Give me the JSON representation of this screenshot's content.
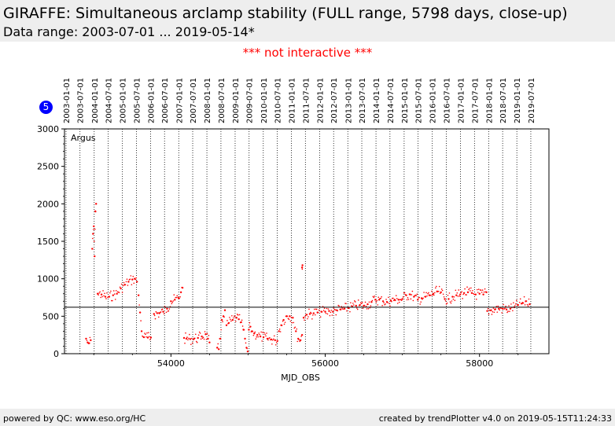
{
  "header": {
    "title": "GIRAFFE: Simultaneous arclamp stability (FULL range, 5798 days, close-up)",
    "subtitle": "Data range: 2003-07-01 ... 2019-05-14*"
  },
  "notice": "*** not interactive ***",
  "badge": "5",
  "footer": {
    "left": "powered by QC: www.eso.org/HC",
    "right": "created by trendPlotter v4.0 on 2019-05-15T11:24:33"
  },
  "chart_data": {
    "type": "scatter",
    "xlabel": "MJD_OBS",
    "ylabel": "",
    "xlim": [
      52620,
      58900
    ],
    "ylim": [
      0,
      3000
    ],
    "x_ticks": [
      54000,
      56000,
      58000
    ],
    "y_ticks": [
      0,
      500,
      1000,
      1500,
      2000,
      2500,
      3000
    ],
    "annotation": "Argus",
    "reference_line": 620,
    "grid": "vertical dotted lines at each half-year date",
    "point_color": "#ff0000",
    "date_ticks": [
      {
        "label": "2003-01-01",
        "mjd": 52640
      },
      {
        "label": "2003-07-01",
        "mjd": 52821
      },
      {
        "label": "2004-01-01",
        "mjd": 53005
      },
      {
        "label": "2004-07-01",
        "mjd": 53187
      },
      {
        "label": "2005-01-01",
        "mjd": 53371
      },
      {
        "label": "2005-07-01",
        "mjd": 53552
      },
      {
        "label": "2006-01-01",
        "mjd": 53736
      },
      {
        "label": "2006-07-01",
        "mjd": 53917
      },
      {
        "label": "2007-01-01",
        "mjd": 54101
      },
      {
        "label": "2007-07-01",
        "mjd": 54282
      },
      {
        "label": "2008-01-01",
        "mjd": 54466
      },
      {
        "label": "2008-07-01",
        "mjd": 54648
      },
      {
        "label": "2009-01-01",
        "mjd": 54832
      },
      {
        "label": "2009-07-01",
        "mjd": 55013
      },
      {
        "label": "2010-01-01",
        "mjd": 55197
      },
      {
        "label": "2010-07-01",
        "mjd": 55378
      },
      {
        "label": "2011-01-01",
        "mjd": 55562
      },
      {
        "label": "2011-07-01",
        "mjd": 55743
      },
      {
        "label": "2012-01-01",
        "mjd": 55927
      },
      {
        "label": "2012-07-01",
        "mjd": 56109
      },
      {
        "label": "2013-01-01",
        "mjd": 56293
      },
      {
        "label": "2013-07-01",
        "mjd": 56474
      },
      {
        "label": "2014-01-01",
        "mjd": 56658
      },
      {
        "label": "2014-07-01",
        "mjd": 56839
      },
      {
        "label": "2015-01-01",
        "mjd": 57023
      },
      {
        "label": "2015-07-01",
        "mjd": 57204
      },
      {
        "label": "2016-01-01",
        "mjd": 57388
      },
      {
        "label": "2016-07-01",
        "mjd": 57570
      },
      {
        "label": "2017-01-01",
        "mjd": 57754
      },
      {
        "label": "2017-07-01",
        "mjd": 57935
      },
      {
        "label": "2018-01-01",
        "mjd": 58119
      },
      {
        "label": "2018-07-01",
        "mjd": 58300
      },
      {
        "label": "2019-01-01",
        "mjd": 58484
      },
      {
        "label": "2019-07-01",
        "mjd": 58665
      }
    ],
    "segments": [
      {
        "x": [
          52900,
          52920,
          52940,
          52960
        ],
        "y": [
          200,
          150,
          140,
          180
        ]
      },
      {
        "x": [
          52980,
          52990,
          53000,
          53010,
          53020,
          53030
        ],
        "y": [
          1400,
          1600,
          1700,
          1300,
          1900,
          2000
        ]
      },
      {
        "x": [
          53050,
          53100,
          53150,
          53200,
          53250,
          53300,
          53350,
          53400,
          53450,
          53500,
          53530,
          53560
        ],
        "y": [
          800,
          790,
          760,
          760,
          780,
          800,
          870,
          920,
          960,
          990,
          1000,
          960
        ]
      },
      {
        "x": [
          53580,
          53600,
          53620,
          53650,
          53700,
          53740
        ],
        "y": [
          780,
          550,
          300,
          220,
          215,
          215
        ]
      },
      {
        "x": [
          53780,
          53850,
          53900,
          53950,
          54000,
          54050,
          54100,
          54130,
          54150
        ],
        "y": [
          530,
          540,
          560,
          600,
          700,
          720,
          740,
          820,
          880
        ]
      },
      {
        "x": [
          54170,
          54200,
          54250,
          54300,
          54350,
          54400,
          54450,
          54480,
          54500
        ],
        "y": [
          210,
          200,
          195,
          200,
          210,
          230,
          260,
          200,
          150
        ]
      },
      {
        "x": [
          54600,
          54620,
          54640,
          54660,
          54680,
          54700
        ],
        "y": [
          80,
          60,
          200,
          450,
          500,
          580
        ]
      },
      {
        "x": [
          54720,
          54750,
          54800,
          54850,
          54880,
          54910,
          54940,
          54960,
          54980,
          54995
        ],
        "y": [
          380,
          410,
          450,
          480,
          460,
          420,
          320,
          200,
          80,
          30
        ]
      },
      {
        "x": [
          55010,
          55030,
          55050,
          55080,
          55120,
          55160,
          55200,
          55250,
          55300,
          55350,
          55380
        ],
        "y": [
          320,
          360,
          300,
          270,
          250,
          230,
          220,
          200,
          190,
          180,
          170
        ]
      },
      {
        "x": [
          55400,
          55430,
          55460,
          55500,
          55540,
          55580,
          55620,
          55650,
          55680,
          55700
        ],
        "y": [
          300,
          380,
          450,
          500,
          500,
          480,
          300,
          200,
          180,
          250
        ]
      },
      {
        "x": [
          55700,
          55705
        ],
        "y": [
          1150,
          1180
        ]
      },
      {
        "x": [
          55720,
          55760,
          55800,
          55850,
          55900,
          55950,
          56000,
          56050,
          56100,
          56150,
          56200,
          56250,
          56300,
          56350,
          56400,
          56450,
          56500,
          56550,
          56600,
          56650,
          56700,
          56750,
          56800,
          56850,
          56900,
          56950,
          57000,
          57050,
          57100,
          57150,
          57200,
          57250,
          57300,
          57350,
          57400,
          57450,
          57500,
          57550,
          57600,
          57650,
          57700,
          57750,
          57800,
          57850,
          57900,
          57950,
          58000,
          58050,
          58090
        ],
        "y": [
          480,
          520,
          530,
          540,
          550,
          560,
          560,
          570,
          560,
          580,
          590,
          600,
          610,
          630,
          640,
          650,
          640,
          660,
          690,
          720,
          720,
          700,
          690,
          710,
          720,
          720,
          730,
          780,
          790,
          760,
          720,
          740,
          760,
          780,
          800,
          830,
          820,
          730,
          730,
          760,
          780,
          790,
          810,
          820,
          810,
          790,
          800,
          790,
          820
        ]
      },
      {
        "x": [
          58100,
          58150,
          58200,
          58250,
          58300,
          58350,
          58400,
          58450,
          58500,
          58550,
          58600,
          58650
        ],
        "y": [
          570,
          580,
          590,
          600,
          600,
          590,
          600,
          620,
          650,
          670,
          700,
          660
        ]
      }
    ]
  }
}
